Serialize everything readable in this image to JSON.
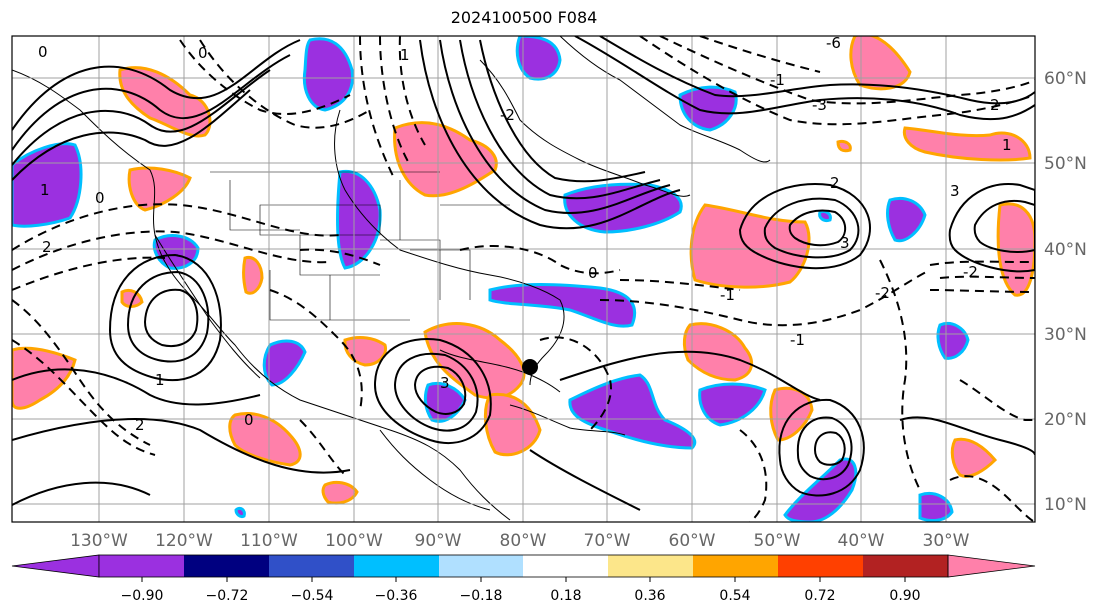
{
  "title": "2024100500 F084",
  "lon_labels": [
    "130°W",
    "120°W",
    "110°W",
    "100°W",
    "90°W",
    "80°W",
    "70°W",
    "60°W",
    "50°W",
    "40°W",
    "30°W"
  ],
  "lat_labels": [
    "60°N",
    "50°N",
    "40°N",
    "30°N",
    "20°N",
    "10°N"
  ],
  "colorbar": {
    "ticks": [
      "−0.90",
      "−0.72",
      "−0.54",
      "−0.36",
      "−0.18",
      "0.18",
      "0.36",
      "0.54",
      "0.72",
      "0.90"
    ],
    "colors": [
      "#9b30e0",
      "#000080",
      "#3050c8",
      "#00bfff",
      "#b0e0ff",
      "#ffffff",
      "#fce68a",
      "#ffa500",
      "#ff4000",
      "#b22222",
      "#ff80aa"
    ],
    "extend": "both"
  },
  "contour_labels": [
    "0",
    "0",
    "0",
    "1",
    "1",
    "2",
    "2",
    "3",
    "3",
    "-1",
    "-1",
    "-2",
    "-2",
    "-3",
    "-6",
    "0",
    "1",
    "2",
    "-1",
    "-2",
    "3",
    "0",
    "1",
    "2"
  ],
  "colors": {
    "contour": "#000000",
    "grid": "#a0a0a0",
    "coast": "#000000",
    "storm": "#000000"
  }
}
